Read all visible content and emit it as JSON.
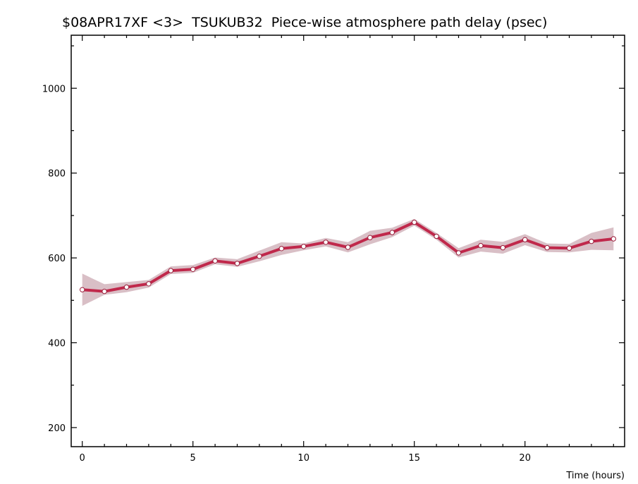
{
  "chart_data": {
    "type": "line",
    "title": "$08APR17XF <3>  TSUKUB32  Piece-wise atmosphere path delay (psec)",
    "xlabel": "Time (hours)",
    "ylabel": "",
    "xlim": [
      -0.5,
      24.5
    ],
    "ylim": [
      155,
      1125
    ],
    "x_ticks": [
      0,
      5,
      10,
      15,
      20
    ],
    "y_ticks": [
      200,
      400,
      600,
      800,
      1000
    ],
    "x_tick_labels": [
      "0",
      "5",
      "10",
      "15",
      "20"
    ],
    "y_tick_labels": [
      "200",
      "400",
      "600",
      "800",
      "1000"
    ],
    "grid": false,
    "legend": "none",
    "series": [
      {
        "x": [
          0,
          1,
          2,
          3,
          4,
          5,
          6,
          7,
          8,
          9,
          10,
          11,
          12,
          13,
          14,
          15,
          16,
          17,
          18,
          19,
          20,
          21,
          22,
          23,
          24
        ],
        "values": [
          525,
          521,
          531,
          539,
          570,
          573,
          593,
          587,
          604,
          622,
          627,
          637,
          625,
          648,
          660,
          684,
          651,
          612,
          629,
          624,
          643,
          624,
          623,
          639,
          645
        ],
        "upper": [
          563,
          538,
          543,
          548,
          580,
          583,
          601,
          597,
          617,
          637,
          634,
          647,
          637,
          664,
          671,
          692,
          659,
          623,
          643,
          638,
          656,
          634,
          633,
          659,
          672
        ],
        "lower": [
          487,
          513,
          519,
          530,
          562,
          565,
          585,
          579,
          592,
          607,
          618,
          627,
          613,
          632,
          649,
          676,
          643,
          601,
          615,
          610,
          630,
          614,
          613,
          619,
          618
        ]
      }
    ],
    "colors": {
      "line": "#c0284b",
      "band": "#d9bfc6",
      "marker_fill": "#ffffff",
      "marker_edge": "#9a1c3a"
    }
  }
}
